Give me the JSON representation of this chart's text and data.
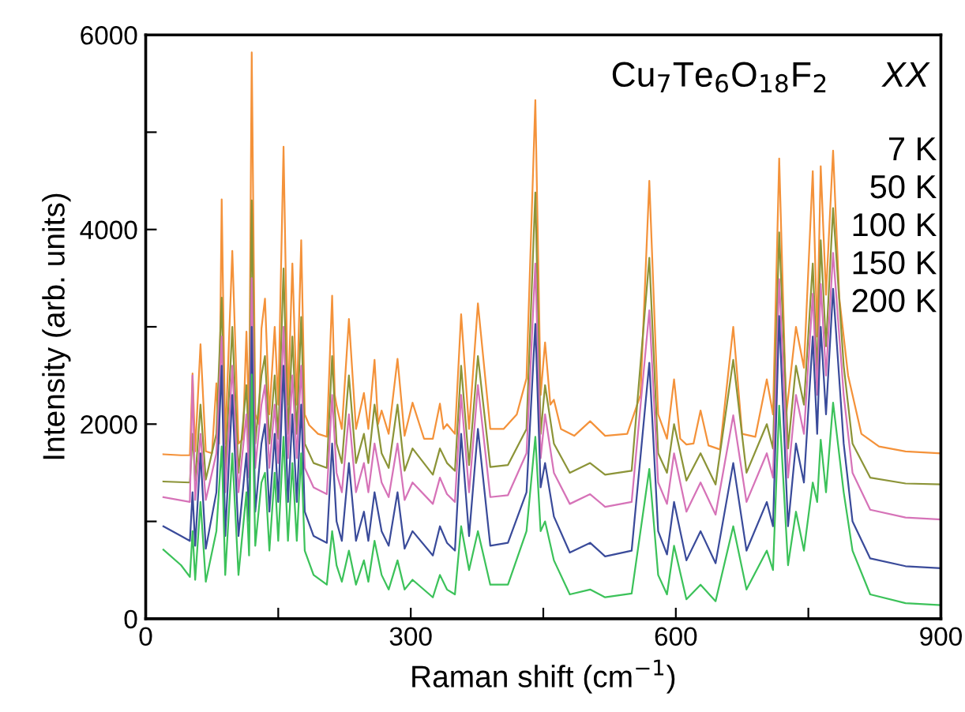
{
  "chart_data": {
    "type": "line",
    "xlabel": "Raman shift (cm$^{−1}$)",
    "ylabel": "Intensity (arb. units)",
    "annotations": [
      "Cu$_{7}$Te$_{6}$O$_{18}$F$_{2}$",
      "XX",
      "7 K",
      "50 K",
      "100 K",
      "150 K",
      "200 K"
    ],
    "xlim": [
      0,
      900
    ],
    "xticks": [
      0,
      {
        "value": 150,
        "label": null
      },
      300,
      {
        "value": 450,
        "label": null
      },
      600,
      {
        "value": 750,
        "label": null
      },
      900
    ],
    "ylim": [
      0,
      6000
    ],
    "yticks": [
      0,
      {
        "value": 1000,
        "label": null
      },
      2000,
      {
        "value": 3000,
        "label": null
      },
      4000,
      {
        "value": 5000,
        "label": null
      },
      6000
    ],
    "grid": false,
    "legend": false,
    "marker": "none",
    "line_style": "solid",
    "series": [
      {
        "color": "#f4923a",
        "x": [
          20,
          40,
          50,
          53,
          56,
          62,
          68,
          75,
          80,
          83,
          86,
          90,
          98,
          105,
          110,
          114,
          117,
          120,
          124,
          128,
          131,
          135,
          140,
          146,
          150,
          156,
          161,
          166,
          171,
          176,
          180,
          185,
          195,
          205,
          211,
          214,
          216,
          222,
          230,
          238,
          247,
          252,
          259,
          263,
          267,
          275,
          285,
          293,
          302,
          315,
          325,
          333,
          337,
          341,
          350,
          357,
          366,
          376,
          390,
          405,
          420,
          431,
          441,
          447,
          452,
          458,
          462,
          470,
          485,
          503,
          520,
          545,
          560,
          570,
          580,
          590,
          598,
          605,
          612,
          620,
          628,
          637,
          650,
          665,
          675,
          690,
          703,
          710,
          717,
          725,
          736,
          745,
          755,
          760,
          764,
          770,
          778,
          785,
          795,
          810,
          830,
          860,
          900
        ],
        "values": [
          1690,
          1680,
          1680,
          2520,
          1720,
          2820,
          1720,
          1700,
          2420,
          1800,
          4310,
          1800,
          3780,
          1800,
          1850,
          2950,
          2000,
          5820,
          2100,
          2000,
          2980,
          3290,
          2100,
          3000,
          2200,
          4850,
          2200,
          3650,
          2200,
          3890,
          2100,
          1990,
          1900,
          1870,
          3320,
          2300,
          2190,
          1950,
          3080,
          1950,
          2320,
          1950,
          2660,
          2000,
          2140,
          1900,
          2670,
          1880,
          2220,
          1850,
          1850,
          2210,
          1950,
          2000,
          1900,
          3130,
          1950,
          3240,
          1950,
          1950,
          2100,
          2470,
          5330,
          2300,
          2840,
          2200,
          2250,
          1950,
          1880,
          2030,
          1880,
          1900,
          2300,
          4500,
          2100,
          1850,
          2460,
          1850,
          1790,
          1800,
          2140,
          1780,
          1740,
          3000,
          1900,
          1870,
          2460,
          2100,
          4730,
          2100,
          3000,
          2580,
          4600,
          2900,
          4650,
          3330,
          4810,
          3300,
          2500,
          1900,
          1770,
          1720,
          1700
        ]
      },
      {
        "color": "#8c9438",
        "x": [
          20,
          50,
          53,
          56,
          62,
          68,
          80,
          86,
          90,
          98,
          105,
          114,
          117,
          120,
          124,
          131,
          135,
          140,
          146,
          150,
          156,
          161,
          166,
          171,
          176,
          180,
          190,
          205,
          211,
          216,
          222,
          230,
          238,
          247,
          252,
          259,
          267,
          275,
          285,
          293,
          302,
          325,
          333,
          341,
          350,
          357,
          366,
          376,
          390,
          410,
          431,
          441,
          447,
          452,
          462,
          480,
          503,
          520,
          550,
          570,
          580,
          590,
          598,
          612,
          628,
          645,
          665,
          680,
          703,
          710,
          717,
          727,
          736,
          745,
          755,
          760,
          764,
          770,
          778,
          790,
          800,
          820,
          860,
          900
        ],
        "values": [
          1410,
          1400,
          1900,
          1420,
          2200,
          1430,
          1900,
          3300,
          1500,
          3000,
          1500,
          2400,
          1700,
          4300,
          1800,
          2500,
          2700,
          1800,
          2500,
          1850,
          3600,
          1900,
          2900,
          1900,
          3100,
          1800,
          1600,
          1550,
          2700,
          1800,
          1600,
          2500,
          1600,
          1900,
          1600,
          2200,
          1700,
          1550,
          2200,
          1520,
          1750,
          1480,
          1750,
          1600,
          1520,
          2600,
          1580,
          2700,
          1560,
          1580,
          1950,
          4380,
          1900,
          2400,
          1800,
          1500,
          1600,
          1480,
          1520,
          3710,
          1700,
          1500,
          2000,
          1420,
          1700,
          1380,
          2660,
          1500,
          2000,
          1750,
          3970,
          1750,
          2600,
          2200,
          3650,
          2500,
          3890,
          2800,
          4220,
          2600,
          1800,
          1450,
          1390,
          1380
        ]
      },
      {
        "color": "#d673b8",
        "x": [
          20,
          50,
          53,
          56,
          62,
          68,
          80,
          86,
          90,
          98,
          105,
          114,
          117,
          120,
          124,
          131,
          135,
          140,
          146,
          150,
          156,
          161,
          166,
          171,
          176,
          180,
          190,
          205,
          211,
          216,
          222,
          230,
          238,
          247,
          252,
          259,
          267,
          275,
          285,
          293,
          302,
          325,
          333,
          341,
          350,
          357,
          366,
          376,
          390,
          410,
          431,
          441,
          447,
          452,
          462,
          480,
          503,
          520,
          550,
          570,
          580,
          590,
          598,
          612,
          628,
          645,
          665,
          680,
          703,
          710,
          717,
          727,
          736,
          745,
          755,
          760,
          764,
          770,
          778,
          790,
          800,
          820,
          860,
          900
        ],
        "values": [
          1250,
          1200,
          2500,
          1220,
          1900,
          1220,
          1700,
          2900,
          1300,
          2600,
          1300,
          2100,
          1450,
          3500,
          1550,
          2200,
          2400,
          1550,
          2200,
          1600,
          3000,
          1650,
          2500,
          1650,
          2600,
          1550,
          1350,
          1280,
          2300,
          1500,
          1300,
          2100,
          1300,
          1600,
          1300,
          1800,
          1400,
          1250,
          1800,
          1220,
          1400,
          1180,
          1450,
          1280,
          1200,
          2300,
          1300,
          2400,
          1250,
          1270,
          1700,
          3650,
          1650,
          2100,
          1500,
          1180,
          1280,
          1150,
          1200,
          3170,
          1400,
          1180,
          1700,
          1100,
          1400,
          1070,
          2090,
          1200,
          1700,
          1450,
          3490,
          1450,
          2300,
          1900,
          3340,
          2300,
          3440,
          2500,
          3760,
          2300,
          1500,
          1120,
          1040,
          1020
        ]
      },
      {
        "color": "#3a4b9a",
        "x": [
          20,
          40,
          50,
          53,
          56,
          62,
          68,
          80,
          86,
          90,
          98,
          105,
          114,
          117,
          120,
          124,
          131,
          135,
          140,
          146,
          150,
          156,
          161,
          166,
          171,
          176,
          180,
          190,
          205,
          211,
          216,
          222,
          230,
          238,
          247,
          252,
          259,
          267,
          275,
          285,
          293,
          302,
          325,
          333,
          341,
          350,
          357,
          366,
          376,
          390,
          410,
          431,
          441,
          447,
          452,
          462,
          480,
          503,
          520,
          550,
          570,
          580,
          590,
          598,
          612,
          628,
          645,
          665,
          680,
          703,
          710,
          717,
          727,
          736,
          745,
          755,
          760,
          764,
          770,
          778,
          790,
          800,
          820,
          860,
          900
        ],
        "values": [
          950,
          850,
          800,
          1300,
          750,
          1700,
          720,
          1300,
          2600,
          850,
          2300,
          850,
          1700,
          1000,
          3000,
          1100,
          1800,
          2000,
          1100,
          1900,
          1200,
          2600,
          1200,
          2100,
          1200,
          2200,
          1100,
          850,
          780,
          1800,
          1000,
          800,
          1600,
          800,
          1100,
          800,
          1300,
          900,
          750,
          1300,
          720,
          900,
          650,
          950,
          780,
          700,
          1900,
          850,
          1950,
          750,
          780,
          1300,
          3030,
          1350,
          1600,
          1050,
          680,
          780,
          640,
          700,
          2630,
          900,
          660,
          1200,
          600,
          900,
          570,
          1600,
          700,
          1200,
          950,
          3110,
          950,
          1800,
          1400,
          2900,
          1900,
          3000,
          2100,
          3390,
          1800,
          1000,
          620,
          540,
          520
        ]
      },
      {
        "color": "#3cc25a",
        "x": [
          20,
          40,
          50,
          53,
          56,
          62,
          68,
          80,
          86,
          90,
          98,
          105,
          114,
          117,
          120,
          124,
          131,
          135,
          140,
          146,
          150,
          156,
          161,
          166,
          171,
          176,
          180,
          190,
          205,
          211,
          216,
          222,
          230,
          238,
          247,
          252,
          259,
          267,
          275,
          285,
          293,
          302,
          325,
          333,
          341,
          350,
          357,
          366,
          376,
          390,
          410,
          431,
          441,
          447,
          452,
          462,
          480,
          503,
          520,
          550,
          570,
          580,
          590,
          598,
          612,
          628,
          645,
          665,
          680,
          703,
          710,
          717,
          727,
          736,
          745,
          755,
          760,
          764,
          770,
          778,
          790,
          800,
          820,
          860,
          900
        ],
        "values": [
          710,
          550,
          430,
          900,
          400,
          1200,
          380,
          900,
          1770,
          450,
          1700,
          450,
          1300,
          650,
          2510,
          750,
          1400,
          1500,
          700,
          1500,
          800,
          1870,
          800,
          1600,
          800,
          1700,
          700,
          450,
          350,
          900,
          550,
          380,
          700,
          350,
          600,
          380,
          800,
          450,
          300,
          600,
          300,
          400,
          220,
          450,
          300,
          250,
          950,
          500,
          900,
          350,
          350,
          900,
          1870,
          900,
          1000,
          600,
          250,
          300,
          220,
          260,
          1540,
          450,
          250,
          750,
          200,
          350,
          180,
          950,
          300,
          700,
          500,
          2190,
          550,
          1100,
          700,
          1400,
          1200,
          1840,
          1300,
          2220,
          1300,
          700,
          250,
          160,
          140
        ]
      }
    ]
  }
}
